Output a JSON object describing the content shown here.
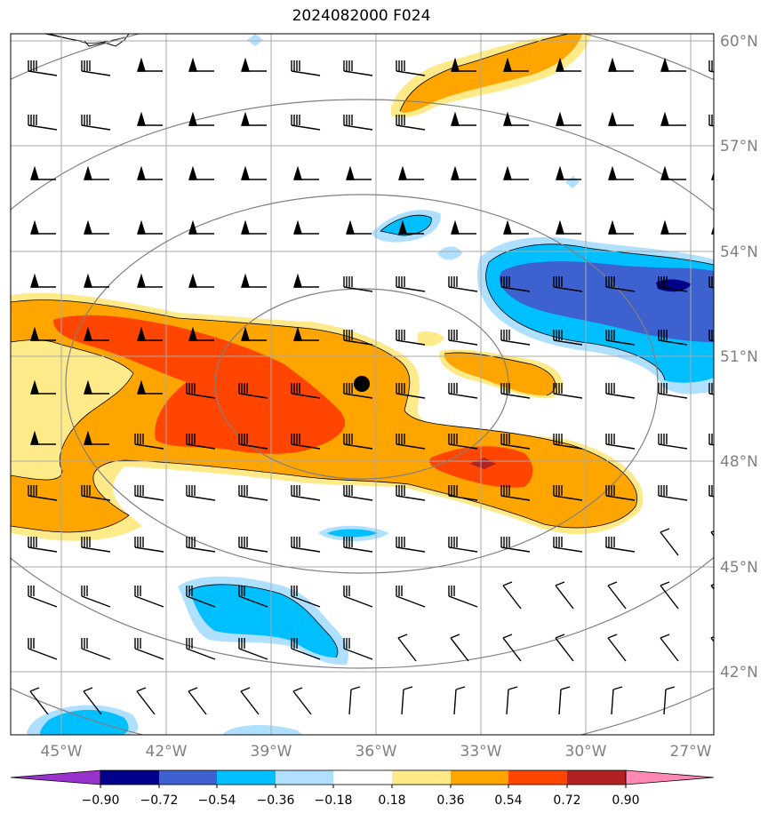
{
  "title": "2024082000 F024",
  "lat_labels": [
    "60°N",
    "57°N",
    "54°N",
    "51°N",
    "48°N",
    "45°N",
    "42°N"
  ],
  "lon_labels": [
    "45°W",
    "42°W",
    "39°W",
    "36°W",
    "33°W",
    "30°W",
    "27°W"
  ],
  "colorbar": {
    "colors": [
      "#9932cc",
      "#00008b",
      "#3d62d0",
      "#00bfff",
      "#b0e0ff",
      "#ffffff",
      "#ffea8a",
      "#ffa500",
      "#ff4500",
      "#b22222",
      "#ff88b4"
    ],
    "labels": [
      "−0.90",
      "−0.72",
      "−0.54",
      "−0.36",
      "−0.18",
      "0.18",
      "0.36",
      "0.54",
      "0.72",
      "0.90"
    ]
  },
  "colors": {
    "grid": "#a9a9a9",
    "range_rings": "#808080",
    "barb": "#000000",
    "center_marker": "#000000"
  }
}
